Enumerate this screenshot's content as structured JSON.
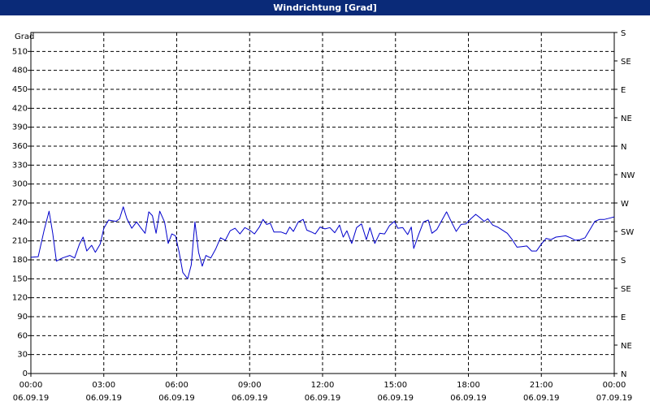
{
  "window": {
    "title": "Windrichtung [Grad]"
  },
  "chart_data": {
    "type": "line",
    "title": "Windrichtung [Grad]",
    "ylabel": "Grad",
    "ylim": [
      0,
      540
    ],
    "xlim_hours": [
      0,
      24
    ],
    "y_ticks": [
      0,
      30,
      60,
      90,
      120,
      150,
      180,
      210,
      240,
      270,
      300,
      330,
      360,
      390,
      420,
      450,
      480,
      510
    ],
    "right_axis_labels": [
      {
        "value": 0,
        "label": "N"
      },
      {
        "value": 45,
        "label": "NE"
      },
      {
        "value": 90,
        "label": "E"
      },
      {
        "value": 135,
        "label": "SE"
      },
      {
        "value": 180,
        "label": "S"
      },
      {
        "value": 225,
        "label": "SW"
      },
      {
        "value": 270,
        "label": "W"
      },
      {
        "value": 315,
        "label": "NW"
      },
      {
        "value": 360,
        "label": "N"
      },
      {
        "value": 405,
        "label": "NE"
      },
      {
        "value": 450,
        "label": "E"
      },
      {
        "value": 495,
        "label": "SE"
      },
      {
        "value": 540,
        "label": "S"
      }
    ],
    "x_ticks": [
      {
        "hour": 0,
        "time": "00:00",
        "date": "06.09.19"
      },
      {
        "hour": 3,
        "time": "03:00",
        "date": "06.09.19"
      },
      {
        "hour": 6,
        "time": "06:00",
        "date": "06.09.19"
      },
      {
        "hour": 9,
        "time": "09:00",
        "date": "06.09.19"
      },
      {
        "hour": 12,
        "time": "12:00",
        "date": "06.09.19"
      },
      {
        "hour": 15,
        "time": "15:00",
        "date": "06.09.19"
      },
      {
        "hour": 18,
        "time": "18:00",
        "date": "06.09.19"
      },
      {
        "hour": 21,
        "time": "21:00",
        "date": "06.09.19"
      },
      {
        "hour": 24,
        "time": "00:00",
        "date": "07.09.19"
      }
    ],
    "grid": true,
    "series": [
      {
        "color": "#0000cc",
        "points": [
          [
            0.0,
            184
          ],
          [
            0.3,
            185
          ],
          [
            0.55,
            228
          ],
          [
            0.75,
            257
          ],
          [
            0.9,
            222
          ],
          [
            1.05,
            178
          ],
          [
            1.3,
            183
          ],
          [
            1.6,
            187
          ],
          [
            1.8,
            183
          ],
          [
            2.0,
            205
          ],
          [
            2.15,
            216
          ],
          [
            2.3,
            194
          ],
          [
            2.5,
            203
          ],
          [
            2.65,
            192
          ],
          [
            2.85,
            205
          ],
          [
            3.0,
            230
          ],
          [
            3.2,
            243
          ],
          [
            3.5,
            241
          ],
          [
            3.65,
            245
          ],
          [
            3.8,
            264
          ],
          [
            3.95,
            245
          ],
          [
            4.15,
            230
          ],
          [
            4.35,
            240
          ],
          [
            4.5,
            232
          ],
          [
            4.7,
            222
          ],
          [
            4.85,
            256
          ],
          [
            5.0,
            250
          ],
          [
            5.15,
            222
          ],
          [
            5.3,
            257
          ],
          [
            5.5,
            240
          ],
          [
            5.65,
            206
          ],
          [
            5.8,
            221
          ],
          [
            5.95,
            218
          ],
          [
            6.1,
            192
          ],
          [
            6.25,
            160
          ],
          [
            6.45,
            150
          ],
          [
            6.6,
            172
          ],
          [
            6.75,
            240
          ],
          [
            6.9,
            192
          ],
          [
            7.05,
            170
          ],
          [
            7.2,
            187
          ],
          [
            7.4,
            183
          ],
          [
            7.6,
            197
          ],
          [
            7.8,
            215
          ],
          [
            8.0,
            211
          ],
          [
            8.2,
            226
          ],
          [
            8.4,
            230
          ],
          [
            8.6,
            221
          ],
          [
            8.8,
            231
          ],
          [
            9.0,
            227
          ],
          [
            9.2,
            221
          ],
          [
            9.4,
            232
          ],
          [
            9.55,
            244
          ],
          [
            9.7,
            236
          ],
          [
            9.85,
            238
          ],
          [
            10.0,
            224
          ],
          [
            10.3,
            224
          ],
          [
            10.5,
            221
          ],
          [
            10.65,
            232
          ],
          [
            10.8,
            225
          ],
          [
            11.0,
            240
          ],
          [
            11.2,
            244
          ],
          [
            11.35,
            227
          ],
          [
            11.55,
            224
          ],
          [
            11.7,
            221
          ],
          [
            11.9,
            232
          ],
          [
            12.1,
            229
          ],
          [
            12.3,
            231
          ],
          [
            12.5,
            223
          ],
          [
            12.7,
            235
          ],
          [
            12.85,
            216
          ],
          [
            13.0,
            226
          ],
          [
            13.2,
            206
          ],
          [
            13.4,
            231
          ],
          [
            13.6,
            237
          ],
          [
            13.8,
            212
          ],
          [
            13.95,
            231
          ],
          [
            14.15,
            206
          ],
          [
            14.35,
            222
          ],
          [
            14.55,
            221
          ],
          [
            14.75,
            234
          ],
          [
            14.95,
            241
          ],
          [
            15.1,
            230
          ],
          [
            15.3,
            231
          ],
          [
            15.5,
            220
          ],
          [
            15.65,
            232
          ],
          [
            15.75,
            198
          ],
          [
            15.95,
            220
          ],
          [
            16.15,
            240
          ],
          [
            16.35,
            243
          ],
          [
            16.5,
            222
          ],
          [
            16.7,
            228
          ],
          [
            16.9,
            242
          ],
          [
            17.1,
            256
          ],
          [
            17.3,
            240
          ],
          [
            17.5,
            225
          ],
          [
            17.7,
            236
          ],
          [
            17.9,
            237
          ],
          [
            18.1,
            245
          ],
          [
            18.3,
            252
          ],
          [
            18.5,
            246
          ],
          [
            18.65,
            241
          ],
          [
            18.8,
            245
          ],
          [
            19.0,
            235
          ],
          [
            19.2,
            232
          ],
          [
            19.4,
            227
          ],
          [
            19.6,
            222
          ],
          [
            19.8,
            212
          ],
          [
            20.0,
            200
          ],
          [
            20.2,
            201
          ],
          [
            20.4,
            202
          ],
          [
            20.6,
            194
          ],
          [
            20.8,
            194
          ],
          [
            21.0,
            205
          ],
          [
            21.2,
            214
          ],
          [
            21.4,
            212
          ],
          [
            21.6,
            216
          ],
          [
            21.8,
            217
          ],
          [
            22.0,
            218
          ],
          [
            22.2,
            215
          ],
          [
            22.4,
            211
          ],
          [
            22.6,
            212
          ],
          [
            22.8,
            215
          ],
          [
            23.0,
            228
          ],
          [
            23.2,
            241
          ],
          [
            23.4,
            244
          ],
          [
            23.6,
            244
          ],
          [
            23.8,
            246
          ],
          [
            24.0,
            248
          ]
        ]
      }
    ]
  }
}
